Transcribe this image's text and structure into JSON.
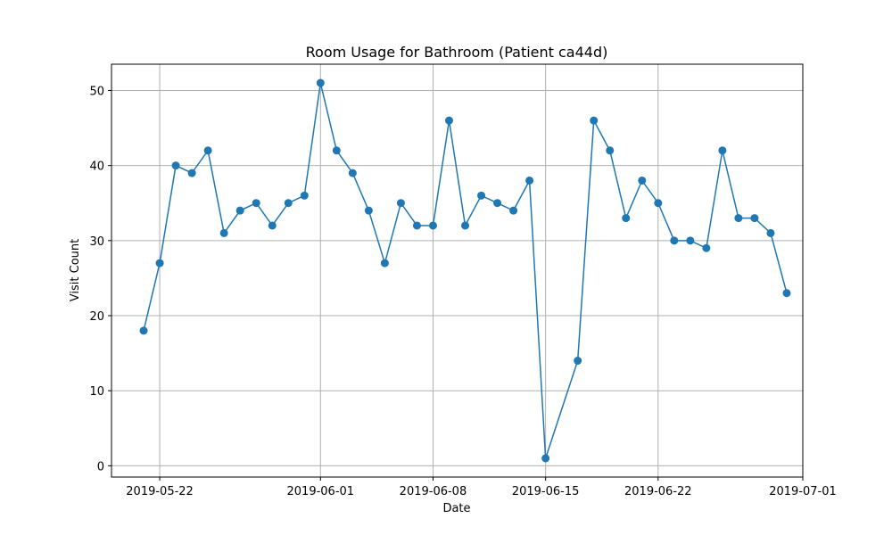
{
  "chart_data": {
    "type": "line",
    "title": "Room Usage for Bathroom (Patient ca44d)",
    "xlabel": "Date",
    "ylabel": "Visit Count",
    "x_ticks": [
      "2019-05-22",
      "2019-06-01",
      "2019-06-08",
      "2019-06-15",
      "2019-06-22",
      "2019-07-01"
    ],
    "y_ticks": [
      0,
      10,
      20,
      30,
      40,
      50
    ],
    "ylim": [
      -1.5,
      53.5
    ],
    "xlim": [
      "2019-05-19",
      "2019-07-01"
    ],
    "grid": true,
    "line_color": "#1f77b4",
    "series": [
      {
        "x": [
          "2019-05-21",
          "2019-05-22",
          "2019-05-23",
          "2019-05-24",
          "2019-05-25",
          "2019-05-26",
          "2019-05-27",
          "2019-05-28",
          "2019-05-29",
          "2019-05-30",
          "2019-05-31",
          "2019-06-01",
          "2019-06-02",
          "2019-06-03",
          "2019-06-04",
          "2019-06-05",
          "2019-06-06",
          "2019-06-07",
          "2019-06-08",
          "2019-06-09",
          "2019-06-10",
          "2019-06-11",
          "2019-06-12",
          "2019-06-13",
          "2019-06-14",
          "2019-06-15",
          "2019-06-17",
          "2019-06-18",
          "2019-06-19",
          "2019-06-20",
          "2019-06-21",
          "2019-06-22",
          "2019-06-23",
          "2019-06-24",
          "2019-06-25",
          "2019-06-26",
          "2019-06-27",
          "2019-06-28",
          "2019-06-29",
          "2019-06-30"
        ],
        "values": [
          18,
          27,
          40,
          39,
          42,
          31,
          34,
          35,
          32,
          35,
          36,
          51,
          42,
          39,
          34,
          27,
          35,
          32,
          32,
          46,
          32,
          36,
          35,
          34,
          38,
          1,
          14,
          46,
          42,
          33,
          38,
          35,
          30,
          30,
          29,
          42,
          33,
          33,
          31,
          23
        ]
      }
    ]
  }
}
